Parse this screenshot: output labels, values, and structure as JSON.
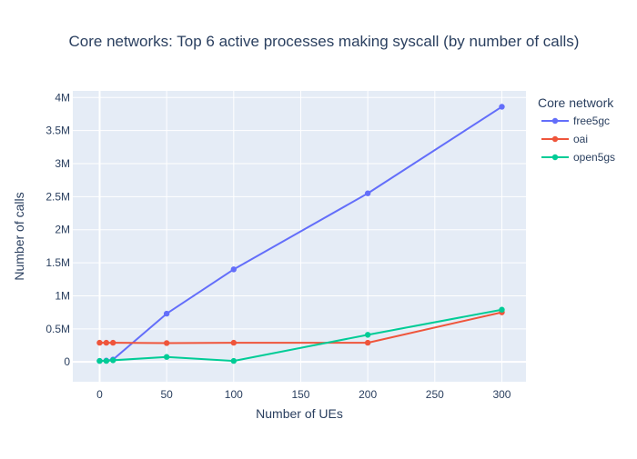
{
  "chart_data": {
    "type": "line",
    "title": "Core networks: Top 6 active processes making syscall (by number of calls)",
    "xlabel": "Number of UEs",
    "ylabel": "Number of calls",
    "xlim": [
      -20,
      318
    ],
    "ylim": [
      -300000,
      4100000
    ],
    "x_ticks": [
      0,
      50,
      100,
      150,
      200,
      250,
      300
    ],
    "x_tick_labels": [
      "0",
      "50",
      "100",
      "150",
      "200",
      "250",
      "300"
    ],
    "y_ticks": [
      0,
      500000,
      1000000,
      1500000,
      2000000,
      2500000,
      3000000,
      3500000,
      4000000
    ],
    "y_tick_labels": [
      "0",
      "0.5M",
      "1M",
      "1.5M",
      "2M",
      "2.5M",
      "3M",
      "3.5M",
      "4M"
    ],
    "grid": true,
    "legend": {
      "title": "Core network",
      "position": "top-right"
    },
    "x": [
      0,
      5,
      10,
      50,
      100,
      200,
      300
    ],
    "series": [
      {
        "name": "free5gc",
        "color": "#636efa",
        "values": [
          15000,
          20000,
          35000,
          730000,
          1400000,
          2550000,
          3860000
        ]
      },
      {
        "name": "oai",
        "color": "#ef553b",
        "values": [
          290000,
          290000,
          290000,
          285000,
          290000,
          290000,
          750000
        ]
      },
      {
        "name": "open5gs",
        "color": "#00cc96",
        "values": [
          15000,
          15000,
          25000,
          75000,
          15000,
          410000,
          790000
        ]
      }
    ]
  }
}
